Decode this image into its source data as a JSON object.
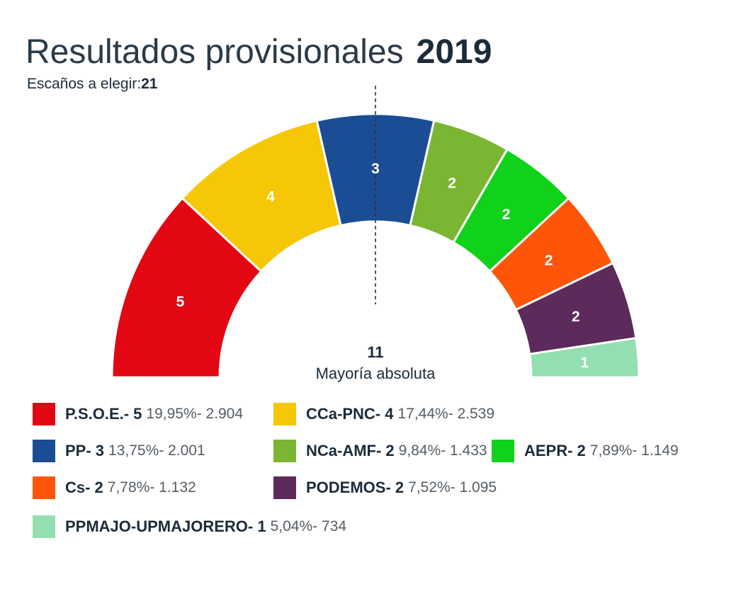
{
  "title": "Resultados provisionales",
  "year": "2019",
  "seats_label": "Escaños a elegir:",
  "seats_total": "21",
  "chart_data": {
    "type": "pie",
    "subtype": "parliament-semicircle",
    "total_seats": 21,
    "majority": {
      "value": "11",
      "label": "Mayoría absoluta"
    },
    "parties": [
      {
        "name": "P.S.O.E.",
        "seats": 5,
        "percent": "19,95%",
        "votes": "2.904",
        "color": "#e30613"
      },
      {
        "name": "CCa-PNC",
        "seats": 4,
        "percent": "17,44%",
        "votes": "2.539",
        "color": "#f6c707"
      },
      {
        "name": "PP",
        "seats": 3,
        "percent": "13,75%",
        "votes": "2.001",
        "color": "#1a4d94"
      },
      {
        "name": "NCa-AMF",
        "seats": 2,
        "percent": "9,84%",
        "votes": "1.433",
        "color": "#7ab632"
      },
      {
        "name": "AEPR",
        "seats": 2,
        "percent": "7,89%",
        "votes": "1.149",
        "color": "#10d21a"
      },
      {
        "name": "Cs",
        "seats": 2,
        "percent": "7,78%",
        "votes": "1.132",
        "color": "#fe5509"
      },
      {
        "name": "PODEMOS",
        "seats": 2,
        "percent": "7,52%",
        "votes": "1.095",
        "color": "#5c2a5b"
      },
      {
        "name": "PPMAJO-UPMAJORERO",
        "seats": 1,
        "percent": "5,04%",
        "votes": "734",
        "color": "#93dfb1"
      }
    ]
  }
}
